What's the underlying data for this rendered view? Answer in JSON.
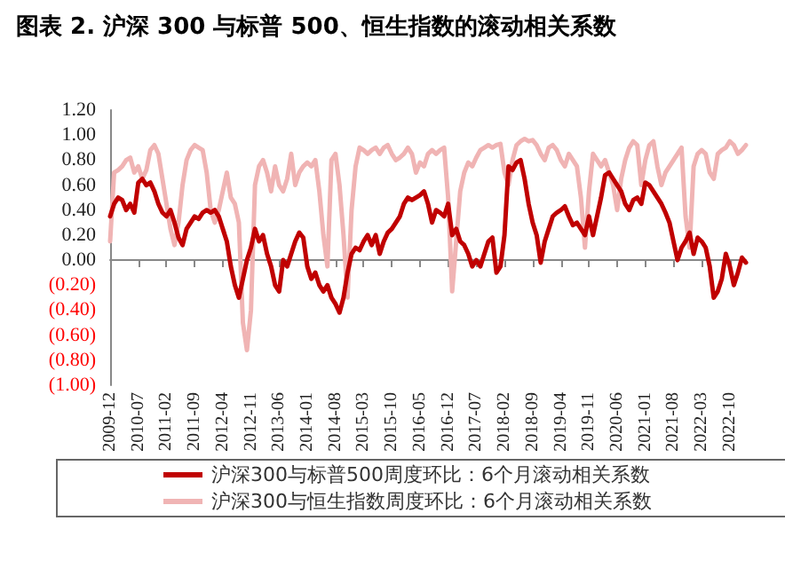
{
  "chart_data": {
    "type": "line",
    "title": "图表 2. 沪深 300 与标普 500、恒生指数的滚动相关系数",
    "categories": [
      "2009-12",
      null,
      null,
      null,
      null,
      null,
      null,
      "2010-07",
      null,
      null,
      null,
      null,
      null,
      null,
      "2011-02",
      null,
      null,
      null,
      null,
      null,
      null,
      "2011-09",
      null,
      null,
      null,
      null,
      null,
      null,
      "2012-04",
      null,
      null,
      null,
      null,
      null,
      null,
      "2012-11",
      null,
      null,
      null,
      null,
      null,
      null,
      "2013-06",
      null,
      null,
      null,
      null,
      null,
      null,
      "2014-01",
      null,
      null,
      null,
      null,
      null,
      null,
      "2014-08",
      null,
      null,
      null,
      null,
      null,
      null,
      "2015-03",
      null,
      null,
      null,
      null,
      null,
      null,
      "2015-10",
      null,
      null,
      null,
      null,
      null,
      null,
      "2016-05",
      null,
      null,
      null,
      null,
      null,
      null,
      "2016-12",
      null,
      null,
      null,
      null,
      null,
      null,
      "2017-07",
      null,
      null,
      null,
      null,
      null,
      null,
      "2018-02",
      null,
      null,
      null,
      null,
      null,
      null,
      "2018-09",
      null,
      null,
      null,
      null,
      null,
      null,
      "2019-04",
      null,
      null,
      null,
      null,
      null,
      null,
      "2019-11",
      null,
      null,
      null,
      null,
      null,
      null,
      "2020-06",
      null,
      null,
      null,
      null,
      null,
      null,
      "2021-01",
      null,
      null,
      null,
      null,
      null,
      null,
      "2021-08",
      null,
      null,
      null,
      null,
      null,
      null,
      "2022-03",
      null,
      null,
      null,
      null,
      null,
      null,
      "2022-10",
      null,
      null,
      null,
      null
    ],
    "series": [
      {
        "name": "沪深300与标普500周度环比：6个月滚动相关系数",
        "color": "#c00000",
        "values": [
          0.35,
          0.45,
          0.5,
          0.48,
          0.4,
          0.45,
          0.38,
          0.62,
          0.65,
          0.6,
          0.62,
          0.55,
          0.45,
          0.38,
          0.35,
          0.4,
          0.3,
          0.18,
          0.12,
          0.25,
          0.3,
          0.35,
          0.33,
          0.38,
          0.4,
          0.38,
          0.4,
          0.35,
          0.25,
          0.15,
          -0.05,
          -0.2,
          -0.3,
          -0.15,
          0.0,
          0.1,
          0.25,
          0.15,
          0.2,
          0.05,
          -0.05,
          -0.2,
          -0.25,
          0.0,
          -0.05,
          0.05,
          0.15,
          0.22,
          0.18,
          -0.05,
          -0.15,
          -0.1,
          -0.2,
          -0.25,
          -0.2,
          -0.3,
          -0.35,
          -0.42,
          -0.3,
          -0.1,
          0.05,
          0.1,
          0.08,
          0.15,
          0.2,
          0.12,
          0.2,
          0.05,
          0.15,
          0.22,
          0.25,
          0.3,
          0.35,
          0.45,
          0.5,
          0.48,
          0.5,
          0.52,
          0.55,
          0.45,
          0.3,
          0.4,
          0.38,
          0.35,
          0.45,
          0.2,
          0.25,
          0.15,
          0.12,
          0.05,
          -0.05,
          0.0,
          -0.05,
          0.05,
          0.15,
          0.18,
          -0.1,
          -0.05,
          0.2,
          0.75,
          0.72,
          0.78,
          0.8,
          0.65,
          0.45,
          0.3,
          0.2,
          -0.02,
          0.15,
          0.25,
          0.35,
          0.38,
          0.4,
          0.43,
          0.35,
          0.28,
          0.3,
          0.25,
          0.2,
          0.35,
          0.2,
          0.35,
          0.5,
          0.68,
          0.7,
          0.65,
          0.6,
          0.55,
          0.45,
          0.4,
          0.48,
          0.5,
          0.45,
          0.62,
          0.6,
          0.55,
          0.5,
          0.45,
          0.38,
          0.3,
          0.15,
          0.0,
          0.1,
          0.15,
          0.22,
          0.05,
          0.18,
          0.15,
          0.1,
          -0.05,
          -0.3,
          -0.25,
          -0.15,
          0.05,
          -0.05,
          -0.2,
          -0.1,
          0.02,
          -0.02
        ]
      },
      {
        "name": "沪深300与恒生指数周度环比：6个月滚动相关系数",
        "color": "#f0b4b4",
        "values": [
          0.15,
          0.7,
          0.72,
          0.75,
          0.8,
          0.82,
          0.7,
          0.75,
          0.65,
          0.72,
          0.88,
          0.92,
          0.85,
          0.65,
          0.45,
          0.25,
          0.12,
          0.3,
          0.6,
          0.8,
          0.88,
          0.92,
          0.9,
          0.88,
          0.7,
          0.4,
          0.3,
          0.4,
          0.55,
          0.7,
          0.5,
          0.45,
          0.3,
          -0.5,
          -0.72,
          -0.4,
          0.6,
          0.75,
          0.8,
          0.7,
          0.55,
          0.75,
          0.6,
          0.55,
          0.65,
          0.85,
          0.6,
          0.7,
          0.75,
          0.78,
          0.75,
          0.8,
          0.55,
          0.2,
          -0.05,
          0.8,
          0.85,
          0.6,
          0.2,
          -0.3,
          0.4,
          0.75,
          0.9,
          0.88,
          0.85,
          0.88,
          0.9,
          0.85,
          0.9,
          0.92,
          0.85,
          0.8,
          0.82,
          0.85,
          0.9,
          0.85,
          0.7,
          0.78,
          0.75,
          0.85,
          0.88,
          0.85,
          0.88,
          0.9,
          0.5,
          -0.25,
          0.15,
          0.55,
          0.7,
          0.78,
          0.75,
          0.82,
          0.88,
          0.9,
          0.92,
          0.9,
          0.92,
          0.93,
          0.7,
          0.6,
          0.8,
          0.92,
          0.95,
          0.97,
          0.95,
          0.96,
          0.92,
          0.85,
          0.8,
          0.9,
          0.92,
          0.88,
          0.8,
          0.75,
          0.85,
          0.8,
          0.75,
          0.5,
          0.1,
          0.55,
          0.85,
          0.8,
          0.75,
          0.8,
          0.7,
          0.6,
          0.4,
          0.65,
          0.8,
          0.9,
          0.95,
          0.92,
          0.6,
          0.8,
          0.92,
          0.95,
          0.75,
          0.6,
          0.7,
          0.75,
          0.8,
          0.85,
          0.9,
          0.35,
          0.1,
          0.75,
          0.85,
          0.88,
          0.85,
          0.7,
          0.65,
          0.85,
          0.88,
          0.9,
          0.95,
          0.92,
          0.85,
          0.88,
          0.92
        ]
      }
    ],
    "ylim": [
      -1,
      1.2
    ],
    "yticks": [
      {
        "value": -1,
        "label": "(1.00)"
      },
      {
        "value": -0.8,
        "label": "(0.80)"
      },
      {
        "value": -0.6,
        "label": "(0.60)"
      },
      {
        "value": -0.4,
        "label": "(0.40)"
      },
      {
        "value": -0.2,
        "label": "(0.20)"
      },
      {
        "value": 0,
        "label": "0.00"
      },
      {
        "value": 0.2,
        "label": "0.20"
      },
      {
        "value": 0.4,
        "label": "0.40"
      },
      {
        "value": 0.6,
        "label": "0.60"
      },
      {
        "value": 0.8,
        "label": "0.80"
      },
      {
        "value": 1,
        "label": "1.00"
      },
      {
        "value": 1.2,
        "label": "1.20"
      }
    ],
    "legend": "bottom",
    "marker": "none"
  }
}
